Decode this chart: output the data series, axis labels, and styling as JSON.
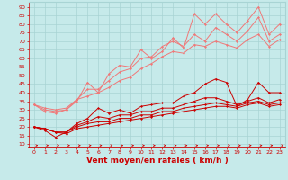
{
  "xlabel": "Vent moyen/en rafales ( km/h )",
  "ylabel_ticks": [
    10,
    15,
    20,
    25,
    30,
    35,
    40,
    45,
    50,
    55,
    60,
    65,
    70,
    75,
    80,
    85,
    90
  ],
  "xticks": [
    0,
    1,
    2,
    3,
    4,
    5,
    6,
    7,
    8,
    9,
    10,
    11,
    12,
    13,
    14,
    15,
    16,
    17,
    18,
    19,
    20,
    21,
    22,
    23
  ],
  "xlim": [
    -0.5,
    23.5
  ],
  "ylim": [
    8,
    93
  ],
  "bg_color": "#c6eaea",
  "grid_color": "#a8d4d4",
  "line_color_light": "#f07878",
  "line_color_dark": "#cc0000",
  "series_light": [
    [
      33,
      29,
      28,
      30,
      35,
      46,
      40,
      51,
      56,
      55,
      65,
      60,
      64,
      72,
      66,
      86,
      80,
      86,
      80,
      75,
      82,
      90,
      74,
      80
    ],
    [
      33,
      30,
      29,
      30,
      36,
      42,
      42,
      47,
      52,
      54,
      60,
      61,
      67,
      70,
      67,
      74,
      70,
      78,
      74,
      70,
      76,
      84,
      70,
      74
    ],
    [
      33,
      31,
      30,
      31,
      36,
      38,
      40,
      43,
      47,
      49,
      54,
      57,
      61,
      64,
      63,
      68,
      67,
      70,
      68,
      66,
      71,
      74,
      67,
      71
    ]
  ],
  "series_dark": [
    [
      20,
      18,
      14,
      17,
      22,
      25,
      31,
      28,
      30,
      28,
      32,
      33,
      34,
      34,
      38,
      40,
      45,
      48,
      46,
      32,
      36,
      46,
      40,
      40
    ],
    [
      20,
      19,
      17,
      17,
      21,
      23,
      26,
      25,
      27,
      27,
      29,
      29,
      31,
      31,
      33,
      35,
      37,
      37,
      35,
      33,
      35,
      37,
      34,
      36
    ],
    [
      20,
      19,
      17,
      17,
      20,
      22,
      23,
      23,
      25,
      25,
      27,
      27,
      29,
      29,
      31,
      32,
      33,
      34,
      33,
      32,
      34,
      35,
      33,
      34
    ],
    [
      20,
      19,
      17,
      16,
      19,
      20,
      21,
      22,
      23,
      24,
      25,
      26,
      27,
      28,
      29,
      30,
      31,
      32,
      32,
      31,
      33,
      34,
      32,
      33
    ]
  ],
  "font_color": "#cc0000",
  "tick_fontsize": 4.5,
  "label_fontsize": 6.5
}
